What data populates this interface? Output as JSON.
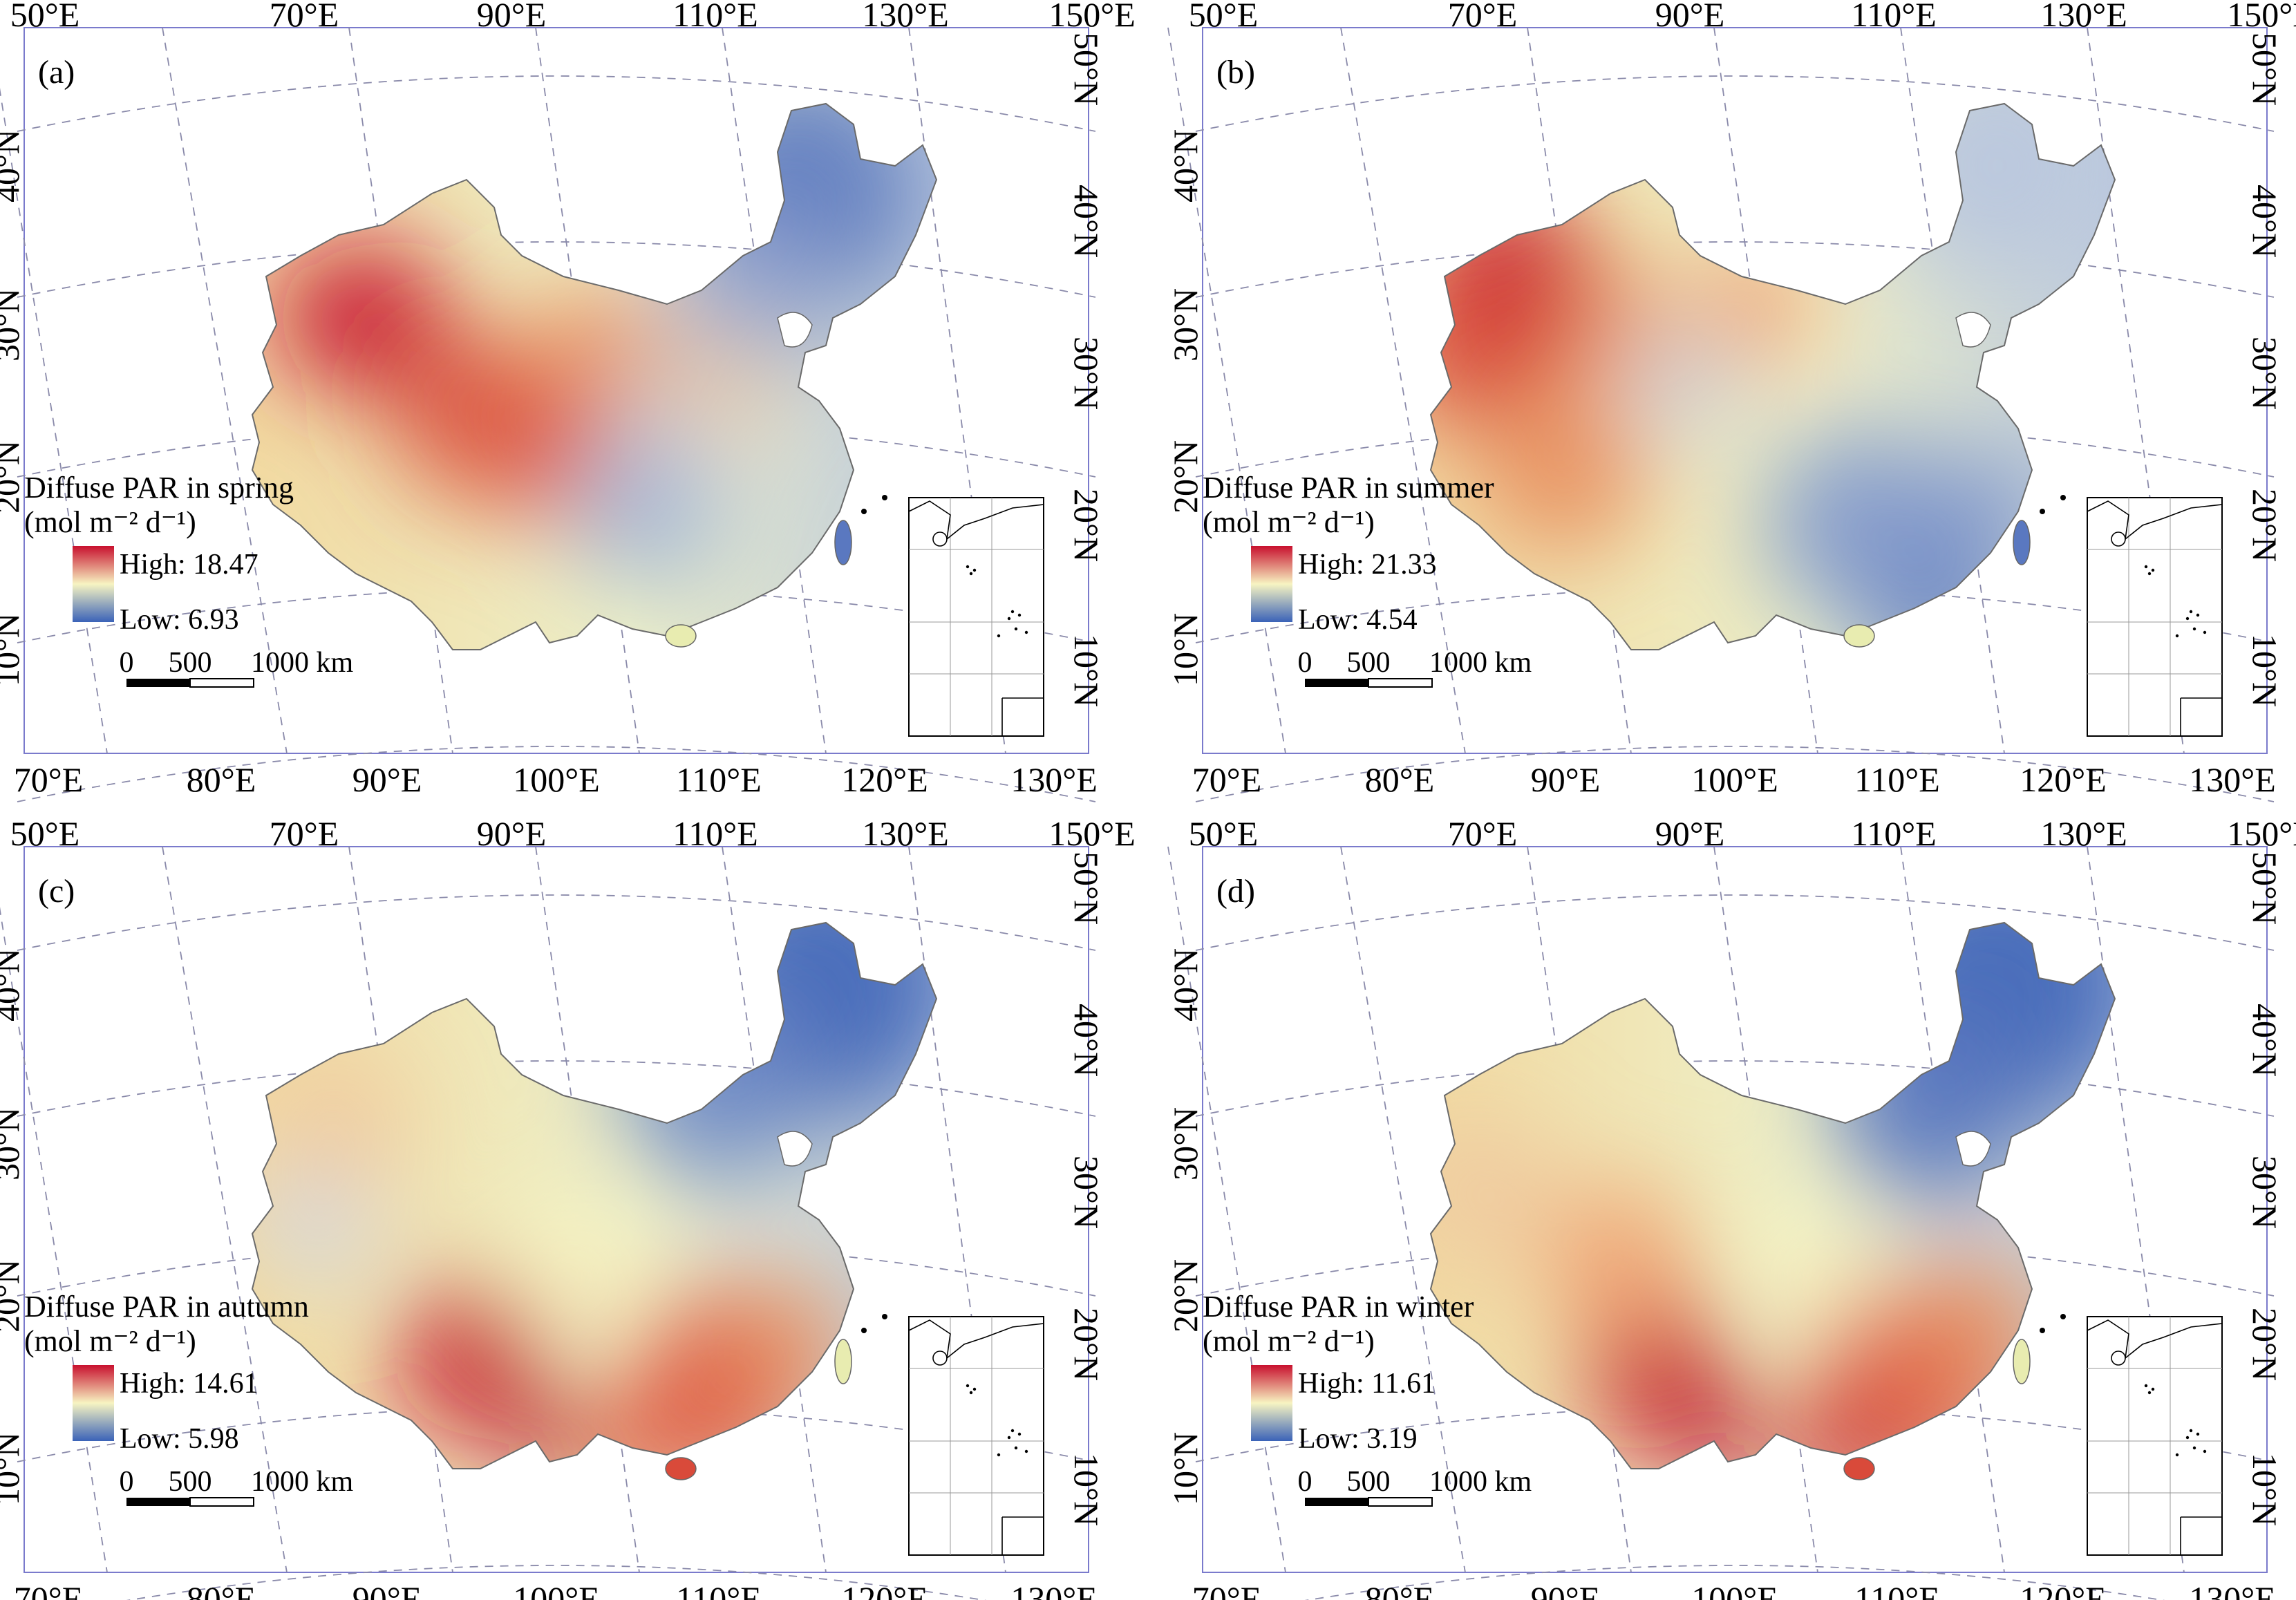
{
  "figure": {
    "axes": {
      "top_lon": [
        "50°E",
        "70°E",
        "90°E",
        "110°E",
        "130°E",
        "150°E"
      ],
      "bottom_lon": [
        "70°E",
        "80°E",
        "90°E",
        "100°E",
        "110°E",
        "120°E",
        "130°E"
      ],
      "left_lat": [
        "40°N",
        "30°N",
        "20°N",
        "10°N"
      ],
      "right_lat": [
        "50°N",
        "40°N",
        "30°N",
        "20°N",
        "10°N"
      ]
    },
    "scale_bar": {
      "labels": [
        "0",
        "500",
        "1000 km"
      ]
    },
    "colors": {
      "high": "#c8102e",
      "mid": "#f7f4c2",
      "low": "#3a62b8",
      "frame": "#7a7acc",
      "grid": "#8a8aaa"
    },
    "panels": [
      {
        "id": "a",
        "label": "(a)",
        "title": "Diffuse PAR in spring",
        "unit": "(mol m⁻² d⁻¹)",
        "high": "High: 18.47",
        "low": "Low: 6.93"
      },
      {
        "id": "b",
        "label": "(b)",
        "title": "Diffuse PAR in summer",
        "unit": "(mol m⁻² d⁻¹)",
        "high": "High: 21.33",
        "low": "Low: 4.54"
      },
      {
        "id": "c",
        "label": "(c)",
        "title": "Diffuse PAR in autumn",
        "unit": "(mol m⁻² d⁻¹)",
        "high": "High: 14.61",
        "low": "Low: 5.98"
      },
      {
        "id": "d",
        "label": "(d)",
        "title": "Diffuse PAR in winter",
        "unit": "(mol m⁻² d⁻¹)",
        "high": "High: 11.61",
        "low": "Low: 3.19"
      }
    ]
  }
}
